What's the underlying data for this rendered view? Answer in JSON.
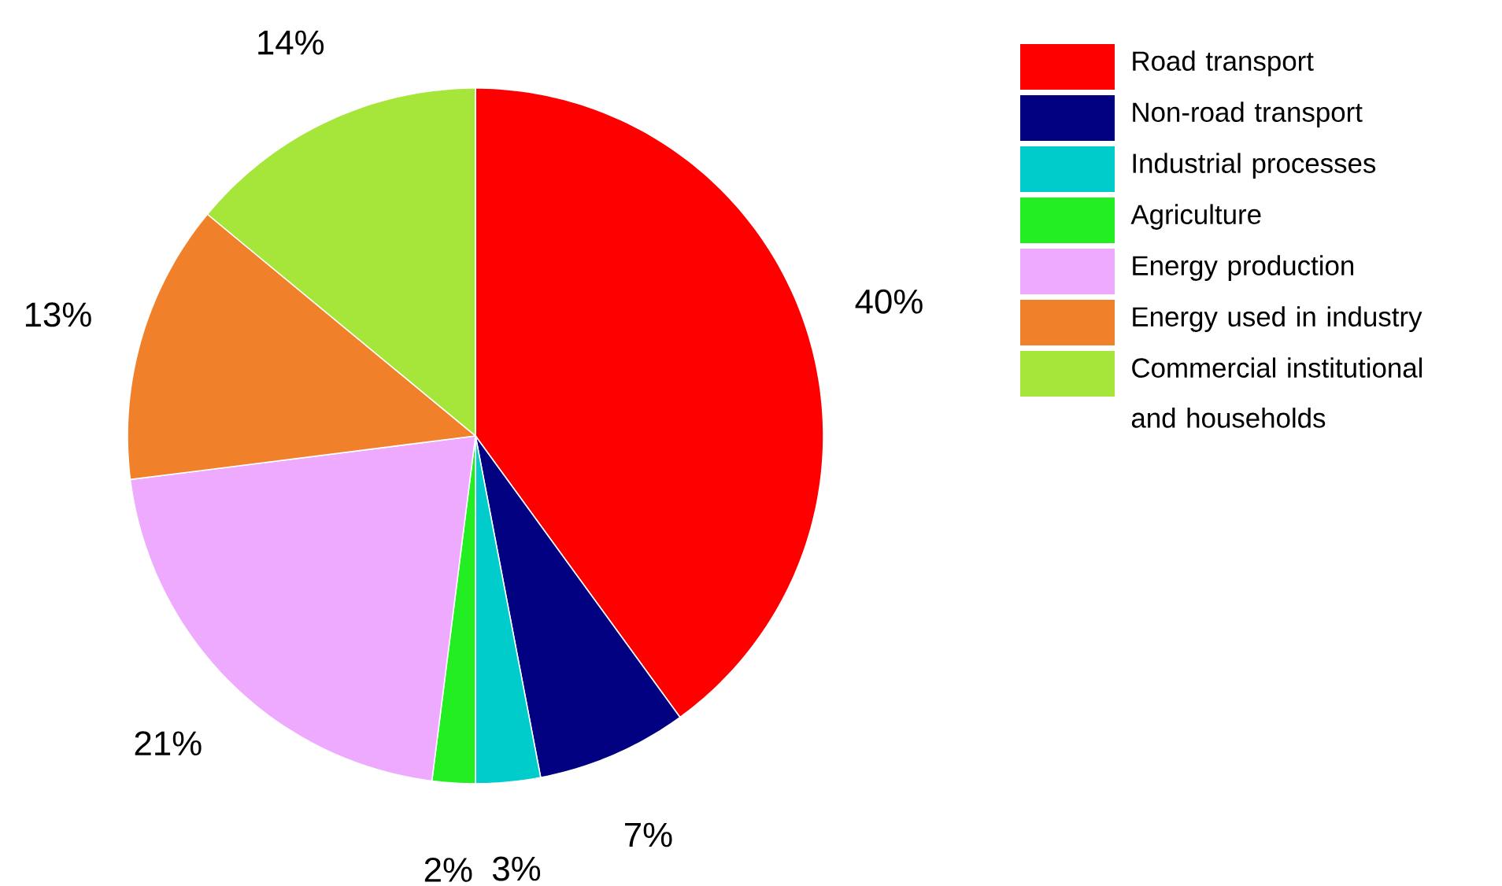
{
  "chart_data": {
    "type": "pie",
    "categories": [
      "Road transport",
      "Non-road transport",
      "Industrial processes",
      "Agriculture",
      "Energy production",
      "Energy used in industry",
      "Commercial institutional and households"
    ],
    "values": [
      40,
      7,
      3,
      2,
      21,
      13,
      14
    ],
    "colors": [
      "#ff0000",
      "#000080",
      "#00cccc",
      "#22ee22",
      "#eeaaff",
      "#f0802a",
      "#a6e63a"
    ],
    "value_labels": [
      "40%",
      "7%",
      "3%",
      "2%",
      "21%",
      "13%",
      "14%"
    ],
    "legend": "top right"
  }
}
